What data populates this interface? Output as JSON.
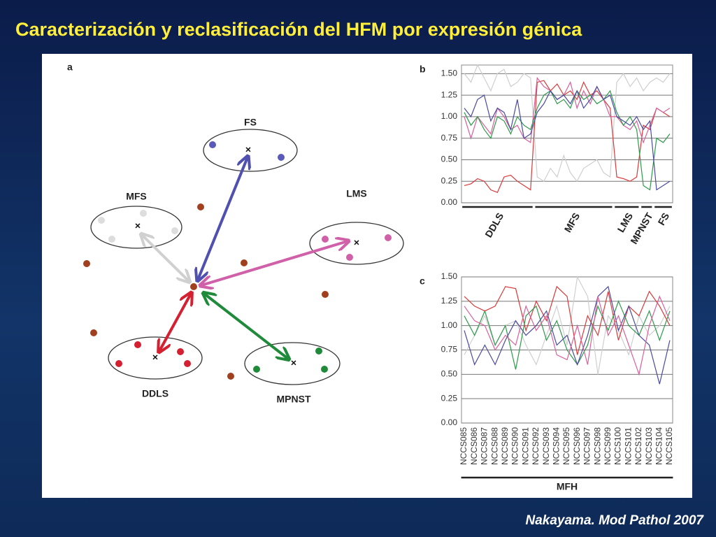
{
  "title": "Caracterización y reclasificación del HFM por expresión génica",
  "citation": "Nakayama. Mod Pathol 2007",
  "diagram": {
    "panel_label": "a",
    "clusters": [
      {
        "label": "FS"
      },
      {
        "label": "MFS"
      },
      {
        "label": "LMS"
      },
      {
        "label": "DDLS"
      },
      {
        "label": "MPNST"
      }
    ]
  },
  "chart_data": [
    {
      "type": "line",
      "panel_label": "b",
      "categories": [
        null,
        null,
        null,
        null,
        null,
        null,
        null,
        null,
        null,
        null,
        null,
        null,
        null,
        null,
        null,
        null,
        null,
        null,
        null,
        null,
        null,
        null,
        null,
        null,
        null,
        null,
        null,
        null,
        null,
        null,
        null,
        null
      ],
      "groups": [
        {
          "label": "DDLS",
          "start": 0,
          "end": 10
        },
        {
          "label": "MFS",
          "start": 11,
          "end": 22
        },
        {
          "label": "LMS",
          "start": 23,
          "end": 26
        },
        {
          "label": "MPNST",
          "start": 27,
          "end": 28
        },
        {
          "label": "FS",
          "start": 29,
          "end": 31
        }
      ],
      "ylim": [
        0,
        1.6
      ],
      "yticks": [
        {
          "value": 0,
          "label": "0.00"
        },
        0.25,
        {
          "value": 0.5,
          "label": "0.50"
        },
        0.75,
        {
          "value": 1,
          "label": "1.00"
        },
        1.25,
        {
          "value": 1.5,
          "label": "1.50"
        }
      ],
      "grid": true,
      "series": [
        {
          "color": "#cfcfcf",
          "values": [
            1.5,
            1.4,
            1.6,
            1.45,
            1.3,
            1.5,
            1.55,
            1.35,
            1.4,
            1.5,
            1.45,
            0.3,
            0.25,
            0.4,
            0.3,
            0.55,
            0.35,
            0.25,
            0.4,
            0.45,
            0.5,
            0.35,
            0.3,
            1.4,
            1.5,
            1.35,
            1.45,
            1.3,
            1.4,
            1.45,
            1.4,
            1.5
          ]
        },
        {
          "color": "#d93a3a",
          "values": [
            0.2,
            0.22,
            0.28,
            0.25,
            0.15,
            0.12,
            0.3,
            0.32,
            0.25,
            0.2,
            0.15,
            1.4,
            1.42,
            1.3,
            1.38,
            1.25,
            1.3,
            1.2,
            1.4,
            1.25,
            1.3,
            1.2,
            1.1,
            0.3,
            0.28,
            0.25,
            0.3,
            0.9,
            0.85,
            1.1,
            1.05,
            1.0
          ]
        },
        {
          "color": "#d9609b",
          "values": [
            1.0,
            0.75,
            1.0,
            0.9,
            0.8,
            1.1,
            1.0,
            0.85,
            0.9,
            0.75,
            0.7,
            1.45,
            1.35,
            1.3,
            1.2,
            1.25,
            1.4,
            1.1,
            1.3,
            1.15,
            1.35,
            1.2,
            1.0,
            1.0,
            0.9,
            0.85,
            0.95,
            0.7,
            0.9,
            1.1,
            1.05,
            1.1
          ]
        },
        {
          "color": "#2e9a4a",
          "values": [
            1.05,
            0.9,
            1.0,
            0.85,
            0.75,
            1.0,
            0.95,
            0.8,
            1.0,
            0.9,
            0.85,
            1.1,
            1.25,
            1.3,
            1.15,
            1.2,
            1.1,
            1.3,
            1.2,
            1.25,
            1.15,
            1.2,
            1.3,
            1.05,
            0.9,
            1.0,
            0.85,
            0.2,
            0.15,
            0.75,
            0.7,
            0.8
          ]
        },
        {
          "color": "#4a4aa0",
          "values": [
            1.1,
            1.0,
            1.2,
            1.25,
            0.95,
            1.1,
            1.05,
            0.85,
            1.2,
            0.75,
            0.8,
            1.05,
            1.15,
            1.3,
            1.2,
            1.25,
            1.15,
            1.3,
            1.1,
            1.2,
            1.35,
            1.2,
            1.25,
            1.0,
            0.95,
            0.9,
            1.0,
            0.85,
            0.95,
            0.15,
            0.2,
            0.25
          ]
        }
      ]
    },
    {
      "type": "line",
      "panel_label": "c",
      "categories": [
        "NCCS085",
        "NCCS086",
        "NCCS087",
        "NCCS088",
        "NCCS089",
        "NCCS090",
        "NCCS091",
        "NCCS092",
        "NCCS093",
        "NCCS094",
        "NCCS095",
        "NCCS096",
        "NCCS097",
        "NCCS098",
        "NCCS099",
        "NCCS100",
        "NCCS101",
        "NCCS102",
        "NCCS103",
        "NCCS104",
        "NCCS105"
      ],
      "groups": [
        {
          "label": "MFH",
          "start": 0,
          "end": 20
        }
      ],
      "ylim": [
        0,
        1.5
      ],
      "yticks": [
        {
          "value": 0,
          "label": "0.00"
        },
        0.25,
        {
          "value": 0.5,
          "label": "0.50"
        },
        0.75,
        {
          "value": 1,
          "label": "1.00"
        },
        1.25,
        {
          "value": 1.5,
          "label": "1.50"
        }
      ],
      "grid": true,
      "series": [
        {
          "color": "#cfcfcf",
          "values": [
            0.7,
            0.9,
            1.1,
            0.8,
            1.0,
            1.05,
            0.8,
            0.6,
            0.9,
            1.2,
            0.8,
            1.5,
            1.3,
            0.5,
            1.1,
            0.95,
            0.7,
            1.1,
            0.9,
            1.0,
            1.2
          ]
        },
        {
          "color": "#d93a3a",
          "values": [
            1.3,
            1.2,
            1.15,
            1.2,
            1.4,
            1.38,
            0.95,
            1.25,
            1.05,
            1.4,
            1.3,
            0.7,
            1.1,
            0.9,
            1.35,
            0.85,
            1.2,
            1.1,
            1.35,
            1.2,
            1.0
          ]
        },
        {
          "color": "#2e9a4a",
          "values": [
            1.1,
            0.9,
            1.15,
            0.8,
            1.0,
            0.55,
            1.1,
            1.2,
            0.85,
            1.05,
            0.75,
            0.6,
            0.8,
            1.2,
            0.95,
            1.25,
            1.0,
            0.9,
            1.15,
            0.85,
            1.15
          ]
        },
        {
          "color": "#4a4aa0",
          "values": [
            0.95,
            0.6,
            0.8,
            0.6,
            0.85,
            1.05,
            0.9,
            1.0,
            1.15,
            0.8,
            0.9,
            0.6,
            0.9,
            1.3,
            1.4,
            0.95,
            1.2,
            0.9,
            0.8,
            0.4,
            0.85
          ]
        },
        {
          "color": "#d9609b",
          "values": [
            1.2,
            1.05,
            1.0,
            0.75,
            0.9,
            0.8,
            1.2,
            0.95,
            1.1,
            0.7,
            0.65,
            1.0,
            0.6,
            1.3,
            0.9,
            1.1,
            0.8,
            0.5,
            1.0,
            1.3,
            1.05
          ]
        }
      ]
    }
  ]
}
